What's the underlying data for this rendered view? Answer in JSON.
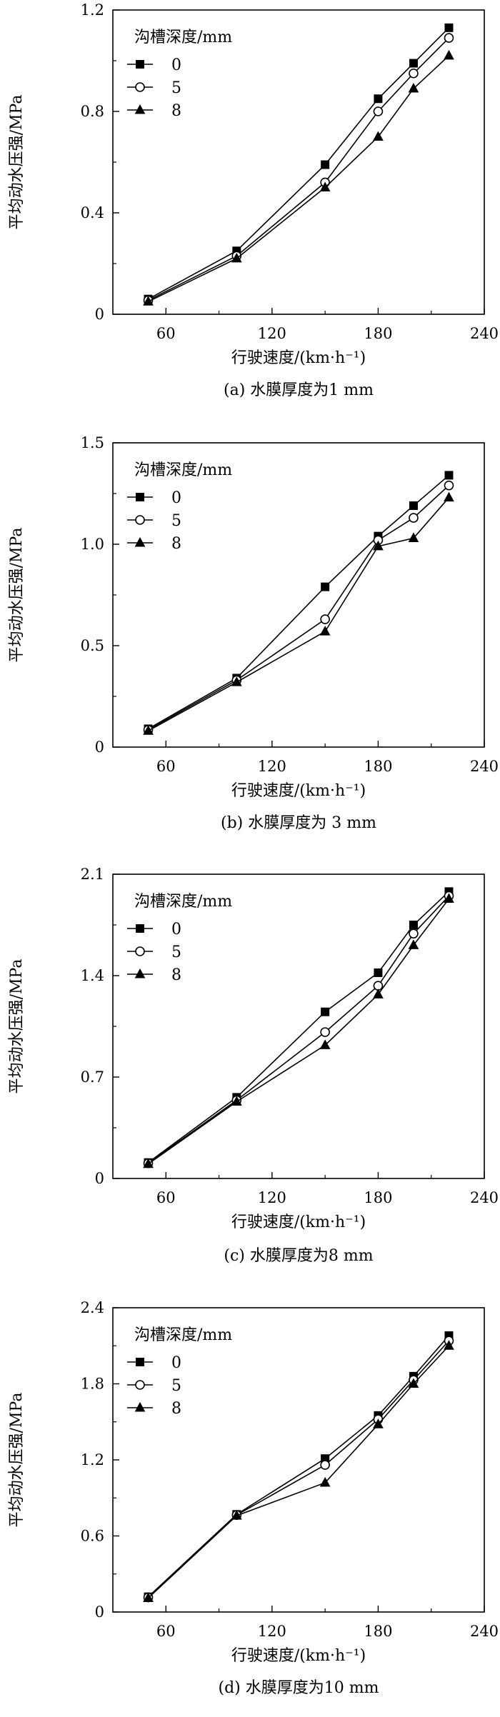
{
  "chart_data": [
    {
      "type": "line",
      "caption": "(a) 水膜厚度为1 mm",
      "xlabel": "行驶速度/(km·h⁻¹)",
      "ylabel": "平均动水压强/MPa",
      "xlim": [
        30,
        240
      ],
      "ylim": [
        0,
        1.2
      ],
      "xticks": [
        "60",
        "120",
        "180",
        "240"
      ],
      "yticks": [
        "0",
        "0.4",
        "0.8",
        "1.2"
      ],
      "legend_title": "沟槽深度/mm",
      "x": [
        50,
        100,
        150,
        180,
        200,
        220
      ],
      "series": [
        {
          "name": "0",
          "marker": "square",
          "values": [
            0.06,
            0.25,
            0.59,
            0.85,
            0.99,
            1.13
          ]
        },
        {
          "name": "5",
          "marker": "circle",
          "values": [
            0.055,
            0.23,
            0.52,
            0.8,
            0.95,
            1.09
          ]
        },
        {
          "name": "8",
          "marker": "triangle",
          "values": [
            0.05,
            0.22,
            0.5,
            0.7,
            0.89,
            1.02
          ]
        }
      ]
    },
    {
      "type": "line",
      "caption": "(b) 水膜厚度为 3 mm",
      "xlabel": "行驶速度/(km·h⁻¹)",
      "ylabel": "平均动水压强/MPa",
      "xlim": [
        30,
        240
      ],
      "ylim": [
        0,
        1.5
      ],
      "xticks": [
        "60",
        "120",
        "180",
        "240"
      ],
      "yticks": [
        "0",
        "0.5",
        "1.0",
        "1.5"
      ],
      "legend_title": "沟槽深度/mm",
      "x": [
        50,
        100,
        150,
        180,
        200,
        220
      ],
      "series": [
        {
          "name": "0",
          "marker": "square",
          "values": [
            0.09,
            0.34,
            0.79,
            1.04,
            1.19,
            1.34
          ]
        },
        {
          "name": "5",
          "marker": "circle",
          "values": [
            0.085,
            0.33,
            0.63,
            1.02,
            1.13,
            1.29
          ]
        },
        {
          "name": "8",
          "marker": "triangle",
          "values": [
            0.08,
            0.32,
            0.57,
            0.99,
            1.03,
            1.23
          ]
        }
      ]
    },
    {
      "type": "line",
      "caption": "(c) 水膜厚度为8 mm",
      "xlabel": "行驶速度/(km·h⁻¹)",
      "ylabel": "平均动水压强/MPa",
      "xlim": [
        30,
        240
      ],
      "ylim": [
        0,
        2.1
      ],
      "xticks": [
        "60",
        "120",
        "180",
        "240"
      ],
      "yticks": [
        "0",
        "0.7",
        "1.4",
        "2.1"
      ],
      "legend_title": "沟槽深度/mm",
      "x": [
        50,
        100,
        150,
        180,
        200,
        220
      ],
      "series": [
        {
          "name": "0",
          "marker": "square",
          "values": [
            0.11,
            0.56,
            1.15,
            1.42,
            1.75,
            1.98
          ]
        },
        {
          "name": "5",
          "marker": "circle",
          "values": [
            0.105,
            0.54,
            1.01,
            1.33,
            1.69,
            1.95
          ]
        },
        {
          "name": "8",
          "marker": "triangle",
          "values": [
            0.1,
            0.53,
            0.92,
            1.27,
            1.61,
            1.93
          ]
        }
      ]
    },
    {
      "type": "line",
      "caption": "(d) 水膜厚度为10 mm",
      "xlabel": "行驶速度/(km·h⁻¹)",
      "ylabel": "平均动水压强/MPa",
      "xlim": [
        30,
        240
      ],
      "ylim": [
        0,
        2.4
      ],
      "xticks": [
        "60",
        "120",
        "180",
        "240"
      ],
      "yticks": [
        "0",
        "0.6",
        "1.2",
        "1.8",
        "2.4"
      ],
      "legend_title": "沟槽深度/mm",
      "x": [
        50,
        100,
        150,
        180,
        200,
        220
      ],
      "series": [
        {
          "name": "0",
          "marker": "square",
          "values": [
            0.12,
            0.77,
            1.21,
            1.55,
            1.86,
            2.18
          ]
        },
        {
          "name": "5",
          "marker": "circle",
          "values": [
            0.115,
            0.765,
            1.16,
            1.52,
            1.83,
            2.14
          ]
        },
        {
          "name": "8",
          "marker": "triangle",
          "values": [
            0.11,
            0.76,
            1.02,
            1.48,
            1.8,
            2.1
          ]
        }
      ]
    }
  ]
}
